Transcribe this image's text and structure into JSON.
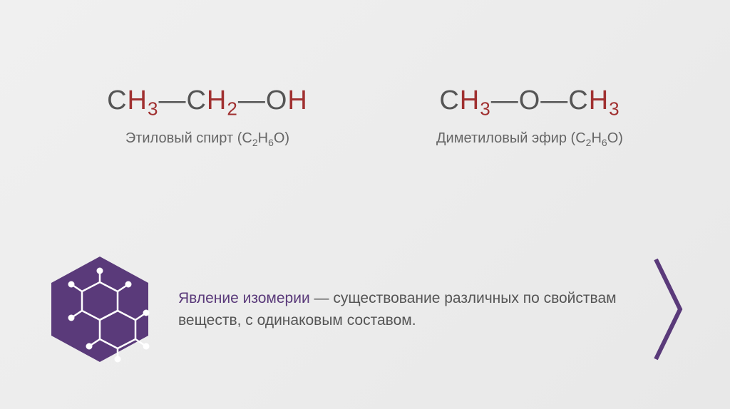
{
  "formula_left": {
    "display_html": "C<span class='h'>H<span class='sub'>3</span></span>—C<span class='h'>H<span class='sub'>2</span></span>—O<span class='h'>H</span>",
    "label_html": "Этиловый спирт (C<span class='sub'>2</span>H<span class='sub'>6</span>O)",
    "color_C_O": "#555555",
    "color_H": "#a03030"
  },
  "formula_right": {
    "display_html": "C<span class='h'>H<span class='sub'>3</span></span>—O—C<span class='h'>H<span class='sub'>3</span></span>",
    "label_html": "Диметиловый эфир (C<span class='sub'>2</span>H<span class='sub'>6</span>O)",
    "color_C_O": "#555555",
    "color_H": "#a03030"
  },
  "definition": {
    "term": "Явление изомерии",
    "body": " — существование различных по свойствам веществ, с одинаковым составом.",
    "term_color": "#5a3a7a",
    "body_color": "#555555",
    "fontsize": 21
  },
  "hexagon": {
    "fill": "#5a3a7a",
    "structure_stroke": "#ffffff",
    "structure_stroke_width": 2.5
  },
  "chevron": {
    "stroke": "#5a3a7a",
    "stroke_width": 6
  },
  "background": {
    "gradient_start": "#f0f0f0",
    "gradient_end": "#e8e8e8"
  }
}
